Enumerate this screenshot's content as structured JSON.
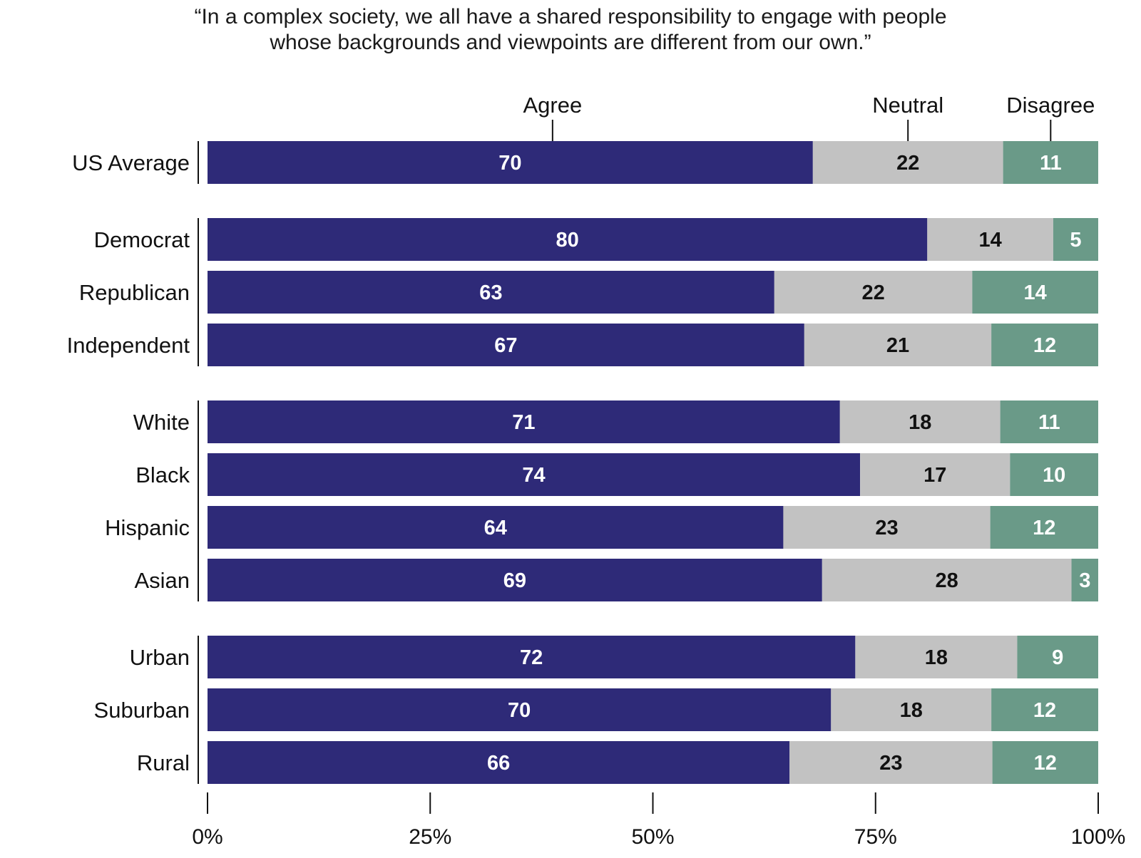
{
  "title_lines": [
    "“In a complex society, we all have a shared responsibility to engage with people",
    "whose backgrounds and viewpoints are different from our own.”"
  ],
  "chart_data": {
    "type": "bar",
    "orientation": "horizontal",
    "stacked": true,
    "categories": [
      "US Average",
      "Democrat",
      "Republican",
      "Independent",
      "White",
      "Black",
      "Hispanic",
      "Asian",
      "Urban",
      "Suburban",
      "Rural"
    ],
    "groups": [
      [
        "US Average"
      ],
      [
        "Democrat",
        "Republican",
        "Independent"
      ],
      [
        "White",
        "Black",
        "Hispanic",
        "Asian"
      ],
      [
        "Urban",
        "Suburban",
        "Rural"
      ]
    ],
    "series": [
      {
        "name": "Agree",
        "color": "#2e2a78",
        "label_color": "#ffffff",
        "values": [
          70,
          80,
          63,
          67,
          71,
          74,
          64,
          69,
          72,
          70,
          66
        ]
      },
      {
        "name": "Neutral",
        "color": "#c2c2c2",
        "label_color": "#111111",
        "values": [
          22,
          14,
          22,
          21,
          18,
          17,
          23,
          28,
          18,
          18,
          23
        ]
      },
      {
        "name": "Disagree",
        "color": "#6a9a88",
        "label_color": "#ffffff",
        "values": [
          11,
          5,
          14,
          12,
          11,
          10,
          12,
          3,
          9,
          12,
          12
        ]
      }
    ],
    "xlim": [
      0,
      100
    ],
    "x_ticks": [
      "0%",
      "25%",
      "50%",
      "75%",
      "100%"
    ],
    "legend": "top, above first bar",
    "grid": false
  }
}
